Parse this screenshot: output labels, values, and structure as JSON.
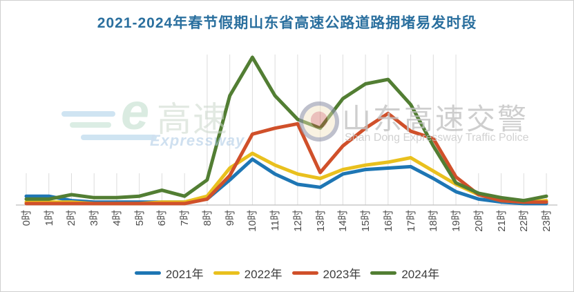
{
  "title": {
    "text": "2021-2024年春节假期山东省高速公路道路拥堵易发时段",
    "color": "#2a6f9e"
  },
  "watermark_left": {
    "logo_letter": "e",
    "logo_cn": "高速",
    "logo_en": "Expressway"
  },
  "watermark_right": {
    "text_cn": "山东高速交警",
    "text_en": "Shan Dong Expressway Traffic Police"
  },
  "chart_data": {
    "type": "line",
    "categories": [
      "0时",
      "1时",
      "2时",
      "3时",
      "4时",
      "5时",
      "6时",
      "7时",
      "8时",
      "9时",
      "10时",
      "11时",
      "12时",
      "13时",
      "14时",
      "15时",
      "16时",
      "17时",
      "18时",
      "19时",
      "20时",
      "21时",
      "22时",
      "23时"
    ],
    "series": [
      {
        "name": "2021年",
        "color": "#1e76b4",
        "values": [
          6,
          6,
          3,
          2,
          2,
          2,
          2,
          2,
          4,
          17,
          31,
          21,
          14,
          12,
          21,
          24,
          25,
          26,
          18,
          9,
          4,
          2,
          1,
          1
        ]
      },
      {
        "name": "2022年",
        "color": "#e9c01e",
        "values": [
          2,
          2,
          2,
          1,
          1,
          1,
          2,
          2,
          6,
          25,
          35,
          27,
          21,
          18,
          24,
          27,
          29,
          32,
          23,
          14,
          7,
          3,
          2,
          3
        ]
      },
      {
        "name": "2023年",
        "color": "#d0502a",
        "values": [
          1,
          1,
          1,
          1,
          1,
          1,
          1,
          1,
          4,
          20,
          48,
          52,
          55,
          22,
          40,
          52,
          62,
          50,
          45,
          19,
          7,
          3,
          2,
          2
        ]
      },
      {
        "name": "2024年",
        "color": "#527e33",
        "values": [
          4,
          4,
          7,
          5,
          5,
          6,
          10,
          6,
          17,
          74,
          100,
          74,
          58,
          52,
          72,
          82,
          85,
          68,
          40,
          15,
          8,
          5,
          3,
          6
        ]
      }
    ],
    "xlabel": "",
    "ylabel": "",
    "ylim": [
      0,
      105
    ],
    "y_axis_visible": false,
    "grid": "vertical",
    "gridline_color": "#dcdcdc",
    "axis_color": "#c8c8c8",
    "legend_position": "bottom"
  }
}
